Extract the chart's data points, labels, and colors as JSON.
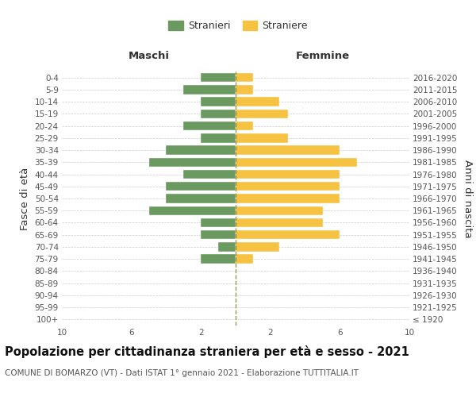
{
  "age_groups": [
    "100+",
    "95-99",
    "90-94",
    "85-89",
    "80-84",
    "75-79",
    "70-74",
    "65-69",
    "60-64",
    "55-59",
    "50-54",
    "45-49",
    "40-44",
    "35-39",
    "30-34",
    "25-29",
    "20-24",
    "15-19",
    "10-14",
    "5-9",
    "0-4"
  ],
  "birth_years": [
    "≤ 1920",
    "1921-1925",
    "1926-1930",
    "1931-1935",
    "1936-1940",
    "1941-1945",
    "1946-1950",
    "1951-1955",
    "1956-1960",
    "1961-1965",
    "1966-1970",
    "1971-1975",
    "1976-1980",
    "1981-1985",
    "1986-1990",
    "1991-1995",
    "1996-2000",
    "2001-2005",
    "2006-2010",
    "2011-2015",
    "2016-2020"
  ],
  "maschi": [
    0,
    0,
    0,
    0,
    0,
    2,
    1,
    2,
    2,
    5,
    4,
    4,
    3,
    5,
    4,
    2,
    3,
    2,
    2,
    3,
    2
  ],
  "femmine": [
    0,
    0,
    0,
    0,
    0,
    1,
    2.5,
    6,
    5,
    5,
    6,
    6,
    6,
    7,
    6,
    3,
    1,
    3,
    2.5,
    1,
    1
  ],
  "male_color": "#6a9a5f",
  "female_color": "#f5c242",
  "grid_color": "#cccccc",
  "dashed_line_color": "#7a7a33",
  "title": "Popolazione per cittadinanza straniera per età e sesso - 2021",
  "subtitle": "COMUNE DI BOMARZO (VT) - Dati ISTAT 1° gennaio 2021 - Elaborazione TUTTITALIA.IT",
  "left_label": "Maschi",
  "right_label": "Femmine",
  "ylabel_left": "Fasce di età",
  "ylabel_right": "Anni di nascita",
  "legend_male": "Stranieri",
  "legend_female": "Straniere",
  "xlim": 10,
  "background_color": "#ffffff",
  "title_fontsize": 10.5,
  "subtitle_fontsize": 7.5,
  "tick_fontsize": 7.5,
  "label_fontsize": 9.5
}
